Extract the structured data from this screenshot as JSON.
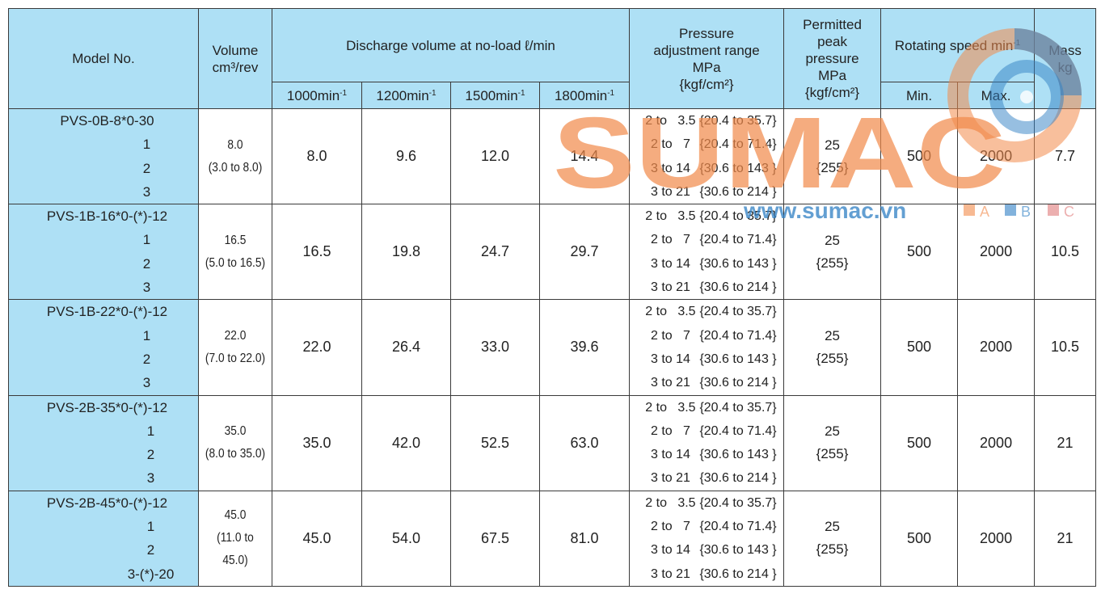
{
  "header": {
    "model": "Model No.",
    "volume": [
      "Volume",
      "cm³/rev"
    ],
    "discharge_group": "Discharge volume at no-load ℓ/min",
    "rpm_unit": "min",
    "rpm_sup": "-1",
    "discharge_cols": [
      "1000",
      "1200",
      "1500",
      "1800"
    ],
    "pressure": [
      "Pressure",
      "adjustment range",
      "MPa",
      "{kgf/cm²}"
    ],
    "peak": [
      "Permitted",
      "peak",
      "pressure",
      "MPa",
      "{kgf/cm²}"
    ],
    "rotating_group": "Rotating speed min",
    "rotating_sup": "-1",
    "rotating_min": "Min.",
    "rotating_max": "Max.",
    "mass": [
      "Mass",
      "kg"
    ]
  },
  "rows": [
    {
      "model": "PVS-0B-8*0-30",
      "subs": [
        "1",
        "2",
        "3"
      ],
      "volume": "8.0",
      "volume_range": "(3.0 to 8.0)",
      "discharge": [
        "8.0",
        "9.6",
        "12.0",
        "14.4"
      ],
      "peak": "25",
      "peak_kgf": "{255}",
      "min": "500",
      "max": "2000",
      "mass": "7.7"
    },
    {
      "model": "PVS-1B-16*0-(*)-12",
      "subs": [
        "1",
        "2",
        "3"
      ],
      "volume": "16.5",
      "volume_range": "(5.0 to 16.5)",
      "discharge": [
        "16.5",
        "19.8",
        "24.7",
        "29.7"
      ],
      "peak": "25",
      "peak_kgf": "{255}",
      "min": "500",
      "max": "2000",
      "mass": "10.5"
    },
    {
      "model": "PVS-1B-22*0-(*)-12",
      "subs": [
        "1",
        "2",
        "3"
      ],
      "volume": "22.0",
      "volume_range": "(7.0 to 22.0)",
      "discharge": [
        "22.0",
        "26.4",
        "33.0",
        "39.6"
      ],
      "peak": "25",
      "peak_kgf": "{255}",
      "min": "500",
      "max": "2000",
      "mass": "10.5"
    },
    {
      "model": "PVS-2B-35*0-(*)-12",
      "subs": [
        "1",
        "2",
        "3"
      ],
      "volume": "35.0",
      "volume_range": "(8.0 to 35.0)",
      "discharge": [
        "35.0",
        "42.0",
        "52.5",
        "63.0"
      ],
      "peak": "25",
      "peak_kgf": "{255}",
      "min": "500",
      "max": "2000",
      "mass": "21"
    },
    {
      "model": "PVS-2B-45*0-(*)-12",
      "subs": [
        "1",
        "2",
        "3-(*)-20"
      ],
      "volume": "45.0",
      "volume_range": "(11.0 to 45.0)",
      "discharge": [
        "45.0",
        "54.0",
        "67.5",
        "81.0"
      ],
      "peak": "25",
      "peak_kgf": "{255}",
      "min": "500",
      "max": "2000",
      "mass": "21"
    }
  ],
  "pressure_ranges": [
    {
      "mpa": "2 to   3.5",
      "kgf": "{20.4 to 35.7}"
    },
    {
      "mpa": "2 to   7",
      "kgf": "{20.4 to 71.4}"
    },
    {
      "mpa": "3 to 14",
      "kgf": "{30.6 to 143 }"
    },
    {
      "mpa": "3 to 21",
      "kgf": "{30.6 to 214 }"
    }
  ],
  "watermark": {
    "logo_text": "SUMAC",
    "url": "www.sumac.vn",
    "legend": [
      "A",
      "B",
      "C"
    ],
    "colors": {
      "orange": "#f28a4a",
      "blue": "#2f7fc4",
      "pink": "#e07a7a"
    }
  }
}
